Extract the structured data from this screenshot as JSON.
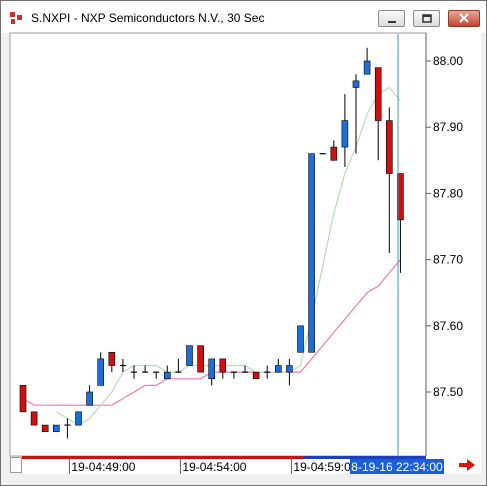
{
  "window": {
    "title": "S.NXPI - NXP Semiconductors N.V., 30 Sec"
  },
  "icons": {
    "app": "chart-app-icon",
    "minimize": "minimize-icon",
    "maximize": "maximize-icon",
    "close": "close-icon",
    "next": "scroll-right-arrow-icon"
  },
  "colors": {
    "up": "#1c6fd6",
    "down": "#cc1111",
    "sma_fast": "#b8dcb8",
    "sma_slow": "#ee7ab8",
    "cursor": "#3aa0c0",
    "time_label_bg": "#1b5fd6"
  },
  "chart_data": {
    "type": "candlestick",
    "y_ticks": [
      "88.00",
      "87.90",
      "87.80",
      "87.70",
      "87.60",
      "87.50"
    ],
    "ylim": [
      87.43,
      88.05
    ],
    "x_tick_labels": [
      "19-04:49:00",
      "19-04:54:00",
      "19-04:59:00"
    ],
    "cursor_time_label": "8-19-16 22:34:00",
    "series": [
      {
        "name": "price",
        "candles": [
          {
            "o": 87.51,
            "h": 87.51,
            "l": 87.47,
            "c": 87.47
          },
          {
            "o": 87.47,
            "h": 87.47,
            "l": 87.45,
            "c": 87.45
          },
          {
            "o": 87.45,
            "h": 87.45,
            "l": 87.44,
            "c": 87.44
          },
          {
            "o": 87.44,
            "h": 87.45,
            "l": 87.44,
            "c": 87.45
          },
          {
            "o": 87.45,
            "h": 87.46,
            "l": 87.43,
            "c": 87.45
          },
          {
            "o": 87.45,
            "h": 87.47,
            "l": 87.45,
            "c": 87.47
          },
          {
            "o": 87.48,
            "h": 87.51,
            "l": 87.48,
            "c": 87.5
          },
          {
            "o": 87.51,
            "h": 87.56,
            "l": 87.51,
            "c": 87.55
          },
          {
            "o": 87.56,
            "h": 87.56,
            "l": 87.53,
            "c": 87.54
          },
          {
            "o": 87.54,
            "h": 87.55,
            "l": 87.53,
            "c": 87.54
          },
          {
            "o": 87.53,
            "h": 87.54,
            "l": 87.52,
            "c": 87.53
          },
          {
            "o": 87.53,
            "h": 87.54,
            "l": 87.53,
            "c": 87.53
          },
          {
            "o": 87.53,
            "h": 87.53,
            "l": 87.52,
            "c": 87.53
          },
          {
            "o": 87.52,
            "h": 87.54,
            "l": 87.52,
            "c": 87.53
          },
          {
            "o": 87.53,
            "h": 87.55,
            "l": 87.53,
            "c": 87.53
          },
          {
            "o": 87.54,
            "h": 87.57,
            "l": 87.54,
            "c": 87.57
          },
          {
            "o": 87.57,
            "h": 87.57,
            "l": 87.53,
            "c": 87.53
          },
          {
            "o": 87.52,
            "h": 87.55,
            "l": 87.51,
            "c": 87.55
          },
          {
            "o": 87.55,
            "h": 87.55,
            "l": 87.52,
            "c": 87.53
          },
          {
            "o": 87.53,
            "h": 87.53,
            "l": 87.52,
            "c": 87.53
          },
          {
            "o": 87.53,
            "h": 87.54,
            "l": 87.53,
            "c": 87.53
          },
          {
            "o": 87.53,
            "h": 87.53,
            "l": 87.52,
            "c": 87.52
          },
          {
            "o": 87.53,
            "h": 87.54,
            "l": 87.52,
            "c": 87.53
          },
          {
            "o": 87.53,
            "h": 87.55,
            "l": 87.53,
            "c": 87.54
          },
          {
            "o": 87.53,
            "h": 87.55,
            "l": 87.51,
            "c": 87.54
          },
          {
            "o": 87.56,
            "h": 87.6,
            "l": 87.56,
            "c": 87.6
          },
          {
            "o": 87.56,
            "h": 87.86,
            "l": 87.56,
            "c": 87.86
          },
          {
            "o": 87.86,
            "h": 87.86,
            "l": 87.86,
            "c": 87.86
          },
          {
            "o": 87.87,
            "h": 87.88,
            "l": 87.85,
            "c": 87.85
          },
          {
            "o": 87.87,
            "h": 87.95,
            "l": 87.84,
            "c": 87.91
          },
          {
            "o": 87.96,
            "h": 87.98,
            "l": 87.86,
            "c": 87.97
          },
          {
            "o": 87.98,
            "h": 88.02,
            "l": 87.98,
            "c": 88.0
          },
          {
            "o": 87.99,
            "h": 87.99,
            "l": 87.85,
            "c": 87.91
          },
          {
            "o": 87.91,
            "h": 87.93,
            "l": 87.71,
            "c": 87.83
          },
          {
            "o": 87.83,
            "h": 87.83,
            "l": 87.68,
            "c": 87.76
          }
        ]
      },
      {
        "name": "fast moving average",
        "values": [
          null,
          null,
          null,
          87.47,
          87.46,
          87.45,
          87.46,
          87.48,
          87.5,
          87.53,
          87.54,
          87.54,
          87.54,
          87.53,
          87.53,
          87.54,
          87.54,
          87.54,
          87.54,
          87.54,
          87.54,
          87.53,
          87.53,
          87.53,
          87.53,
          87.54,
          87.61,
          87.69,
          87.77,
          87.83,
          87.87,
          87.92,
          87.95,
          87.96,
          87.94
        ]
      },
      {
        "name": "slow moving average",
        "values": [
          87.49,
          87.48,
          87.48,
          87.48,
          87.48,
          87.48,
          87.48,
          87.48,
          87.48,
          87.49,
          87.5,
          87.51,
          87.51,
          87.52,
          87.52,
          87.52,
          87.52,
          87.53,
          87.53,
          87.53,
          87.53,
          87.53,
          87.53,
          87.53,
          87.53,
          87.53,
          87.55,
          87.57,
          87.59,
          87.61,
          87.63,
          87.65,
          87.66,
          87.68,
          87.7
        ]
      }
    ]
  }
}
